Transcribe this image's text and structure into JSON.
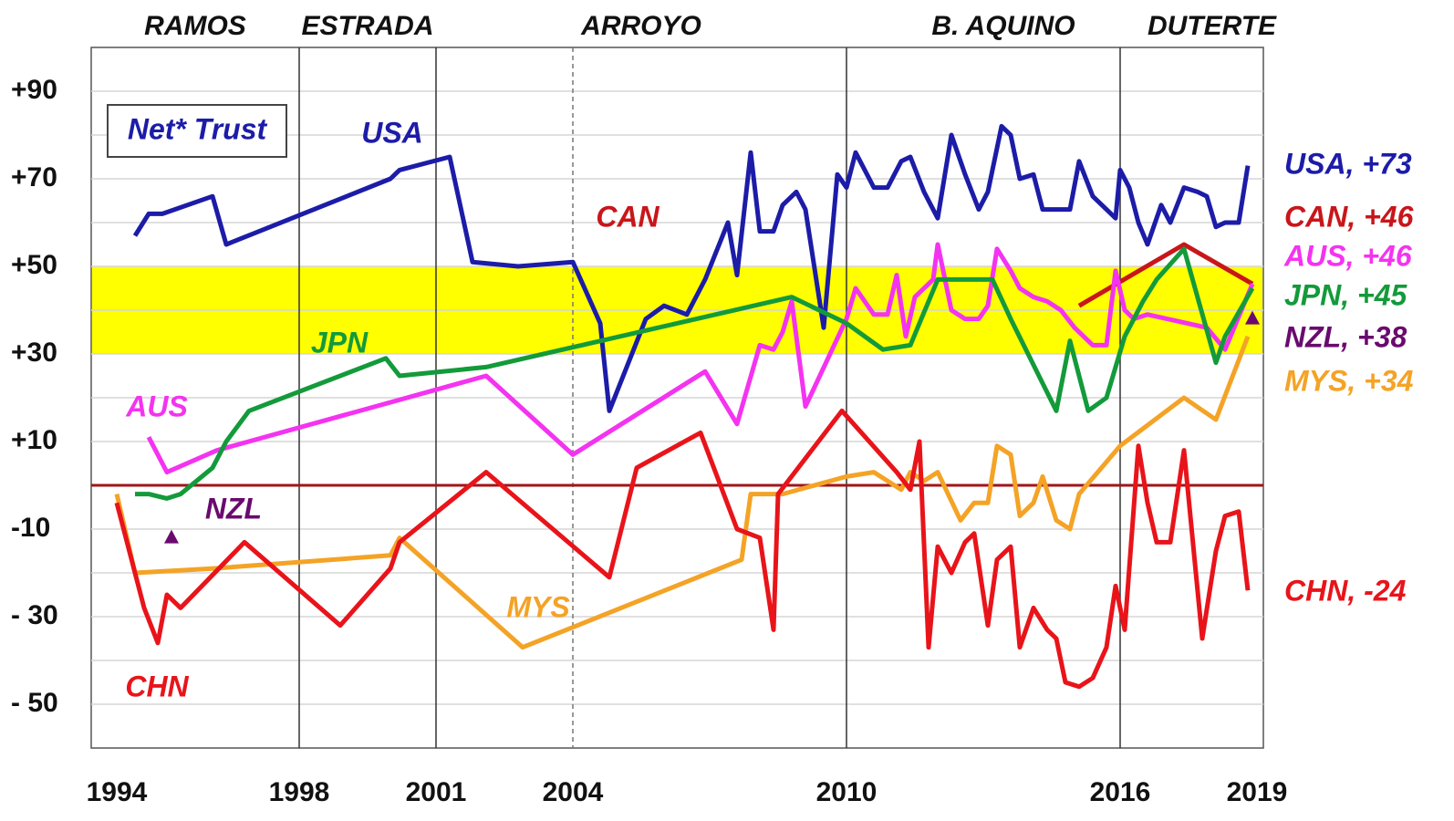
{
  "chart_data": {
    "type": "line",
    "annotation": "Net* Trust",
    "administrations": [
      "RAMOS",
      "ESTRADA",
      "ARROYO",
      "B. AQUINO",
      "DUTERTE"
    ],
    "term_boundaries": [
      1998,
      2001,
      2010,
      2016
    ],
    "dashed_boundaries": [
      2004
    ],
    "highlight_band": [
      30,
      50
    ],
    "reference_line": 0,
    "xlim": [
      1993.44,
      2019.14
    ],
    "xticks": [
      1994,
      1998,
      2001,
      2004,
      2010,
      2016,
      2019
    ],
    "ylim": [
      -60,
      100
    ],
    "yticks": [
      {
        "value": 90,
        "label": "+90"
      },
      {
        "value": 70,
        "label": "+70"
      },
      {
        "value": 50,
        "label": "+50"
      },
      {
        "value": 30,
        "label": "+30"
      },
      {
        "value": 10,
        "label": "+10"
      },
      {
        "value": -10,
        "label": "-10"
      },
      {
        "value": -30,
        "label": "- 30"
      },
      {
        "value": -50,
        "label": "- 50"
      }
    ],
    "grid_lines": [
      -50,
      -40,
      -30,
      -20,
      -10,
      0,
      10,
      20,
      30,
      40,
      50,
      60,
      70,
      80,
      90
    ],
    "series": [
      {
        "name": "USA",
        "color": "#1c1ca8",
        "end_label": "USA, +73",
        "x": [
          1994.4,
          1994.7,
          1995.0,
          1996.1,
          1996.4,
          2000.0,
          2000.2,
          2001.3,
          2001.8,
          2002.8,
          2004.0,
          2004.6,
          2004.8,
          2005.6,
          2006.0,
          2006.5,
          2006.9,
          2007.4,
          2007.6,
          2007.9,
          2008.1,
          2008.4,
          2008.6,
          2008.9,
          2009.1,
          2009.5,
          2009.8,
          2010.0,
          2010.2,
          2010.6,
          2010.9,
          2011.2,
          2011.4,
          2011.7,
          2012.0,
          2012.3,
          2012.6,
          2012.9,
          2013.1,
          2013.4,
          2013.6,
          2013.8,
          2014.1,
          2014.3,
          2014.6,
          2014.9,
          2015.1,
          2015.4,
          2015.7,
          2015.9,
          2016.0,
          2016.2,
          2016.4,
          2016.6,
          2016.9,
          2017.1,
          2017.4,
          2017.7,
          2017.9,
          2018.1,
          2018.3,
          2018.6,
          2018.8
        ],
        "values": [
          57,
          62,
          62,
          66,
          55,
          70,
          72,
          75,
          51,
          50,
          51,
          37,
          17,
          38,
          41,
          39,
          47,
          60,
          48,
          76,
          58,
          58,
          64,
          67,
          63,
          36,
          71,
          68,
          76,
          68,
          68,
          74,
          75,
          67,
          61,
          80,
          71,
          63,
          67,
          82,
          80,
          70,
          71,
          63,
          63,
          63,
          74,
          66,
          63,
          61,
          72,
          68,
          60,
          55,
          64,
          60,
          68,
          67,
          66,
          59,
          60,
          60,
          73
        ]
      },
      {
        "name": "CAN",
        "color": "#c8161a",
        "end_label": "CAN, +46",
        "x": [
          2015.1,
          2017.4,
          2018.9
        ],
        "values": [
          41,
          55,
          46
        ]
      },
      {
        "name": "AUS",
        "color": "#f433f0",
        "end_label": "AUS, +46",
        "x": [
          1994.7,
          1995.1,
          1996.2,
          2002.1,
          2004.0,
          2006.9,
          2007.6,
          2008.1,
          2008.4,
          2008.6,
          2008.8,
          2009.1,
          2010.0,
          2010.2,
          2010.6,
          2010.9,
          2011.1,
          2011.3,
          2011.5,
          2011.7,
          2011.9,
          2012.0,
          2012.3,
          2012.6,
          2012.9,
          2013.1,
          2013.3,
          2013.6,
          2013.8,
          2014.1,
          2014.4,
          2014.7,
          2015.0,
          2015.4,
          2015.7,
          2015.9,
          2016.1,
          2016.3,
          2016.6,
          2017.9,
          2018.3,
          2018.9
        ],
        "values": [
          11,
          3,
          8,
          25,
          7,
          26,
          14,
          32,
          31,
          35,
          42,
          18,
          38,
          45,
          39,
          39,
          48,
          34,
          43,
          45,
          47,
          55,
          40,
          38,
          38,
          41,
          54,
          49,
          45,
          43,
          42,
          40,
          36,
          32,
          32,
          49,
          40,
          38,
          39,
          36,
          31,
          46
        ]
      },
      {
        "name": "JPN",
        "color": "#139a3a",
        "end_label": "JPN, +45",
        "x": [
          1994.4,
          1994.7,
          1995.1,
          1995.4,
          1996.1,
          1996.4,
          1996.9,
          1999.9,
          2000.2,
          2002.1,
          2008.8,
          2010.0,
          2010.8,
          2011.4,
          2012.0,
          2013.2,
          2013.6,
          2014.6,
          2014.9,
          2015.3,
          2015.7,
          2016.1,
          2016.5,
          2016.8,
          2017.4,
          2018.1,
          2018.3,
          2018.9
        ],
        "values": [
          -2,
          -2,
          -3,
          -2,
          4,
          10,
          17,
          29,
          25,
          27,
          43,
          37,
          31,
          32,
          47,
          47,
          38,
          17,
          33,
          17,
          20,
          34,
          42,
          47,
          54,
          28,
          34,
          45
        ]
      },
      {
        "name": "NZL",
        "color": "#6a0a6e",
        "end_label": "NZL, +38",
        "line": false,
        "x": [
          1995.2,
          2018.9
        ],
        "values": [
          -12,
          38
        ]
      },
      {
        "name": "MYS",
        "color": "#f4a326",
        "end_label": "MYS, +34",
        "x": [
          1994.0,
          1994.4,
          1996.1,
          2000.0,
          2000.2,
          2002.9,
          2007.7,
          2007.9,
          2008.6,
          2010.0,
          2010.6,
          2011.2,
          2011.4,
          2011.7,
          2012.0,
          2012.5,
          2012.8,
          2013.1,
          2013.3,
          2013.6,
          2013.8,
          2014.1,
          2014.3,
          2014.6,
          2014.9,
          2015.1,
          2016.0,
          2017.4,
          2018.1,
          2018.8
        ],
        "values": [
          -2,
          -20,
          -19,
          -16,
          -12,
          -37,
          -17,
          -2,
          -2,
          2,
          3,
          -1,
          3,
          1,
          3,
          -8,
          -4,
          -4,
          9,
          7,
          -7,
          -4,
          2,
          -8,
          -10,
          -2,
          9,
          20,
          15,
          34
        ]
      },
      {
        "name": "CHN",
        "color": "#e8141a",
        "end_label": "CHN, -24",
        "x": [
          1994.0,
          1994.6,
          1994.9,
          1995.1,
          1995.4,
          1996.8,
          1998.9,
          2000.0,
          2000.2,
          2002.1,
          2004.8,
          2005.4,
          2006.8,
          2007.6,
          2008.1,
          2008.4,
          2008.5,
          2009.9,
          2011.1,
          2011.4,
          2011.6,
          2011.8,
          2012.0,
          2012.3,
          2012.6,
          2012.8,
          2013.1,
          2013.3,
          2013.6,
          2013.8,
          2014.1,
          2014.4,
          2014.6,
          2014.8,
          2015.1,
          2015.4,
          2015.7,
          2015.9,
          2016.1,
          2016.4,
          2016.6,
          2016.8,
          2017.1,
          2017.4,
          2017.8,
          2018.1,
          2018.3,
          2018.6,
          2018.8
        ],
        "values": [
          -4,
          -28,
          -36,
          -25,
          -28,
          -13,
          -32,
          -19,
          -13,
          3,
          -21,
          4,
          12,
          -10,
          -12,
          -33,
          -2,
          17,
          3,
          -1,
          10,
          -37,
          -14,
          -20,
          -13,
          -11,
          -32,
          -17,
          -14,
          -37,
          -28,
          -33,
          -35,
          -45,
          -46,
          -44,
          -37,
          -23,
          -33,
          9,
          -4,
          -13,
          -13,
          8,
          -35,
          -15,
          -7,
          -6,
          -24
        ]
      }
    ]
  }
}
